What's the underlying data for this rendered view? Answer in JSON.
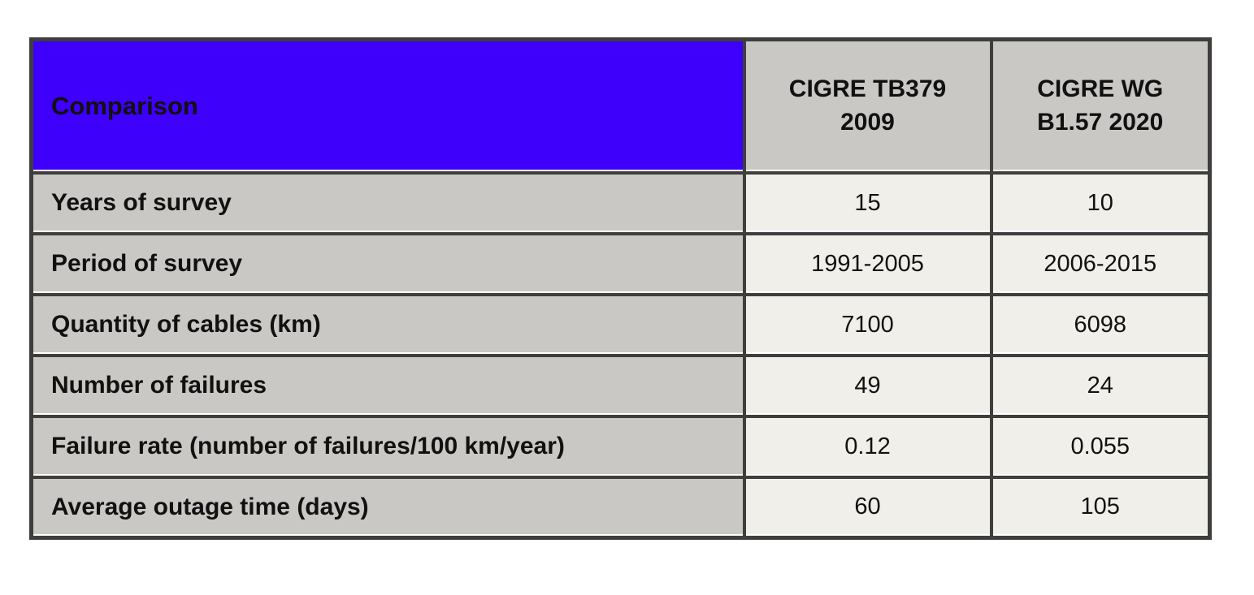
{
  "colors": {
    "accent_blue": "#3e00fa",
    "header_text_white": "#ffffff",
    "label_cell_gray": "#c9c8c4",
    "value_cell_offwhite": "#f0efea",
    "border_dark": "#3e3e3c",
    "text_dark": "#111111",
    "page_background": "#ffffff"
  },
  "chart_data": {
    "type": "table",
    "title": "Comparison",
    "columns": [
      "Comparison",
      "CIGRE TB379 2009",
      "CIGRE WG B1.57 2020"
    ],
    "rows": [
      [
        "Years of survey",
        "15",
        "10"
      ],
      [
        "Period of survey",
        "1991-2005",
        "2006-2015"
      ],
      [
        "Quantity of cables (km)",
        "7100",
        "6098"
      ],
      [
        "Number of failures",
        "49",
        "24"
      ],
      [
        "Failure rate (number of failures/100 km/year)",
        "0.12",
        "0.055"
      ],
      [
        "Average outage time (days)",
        "60",
        "105"
      ]
    ]
  }
}
